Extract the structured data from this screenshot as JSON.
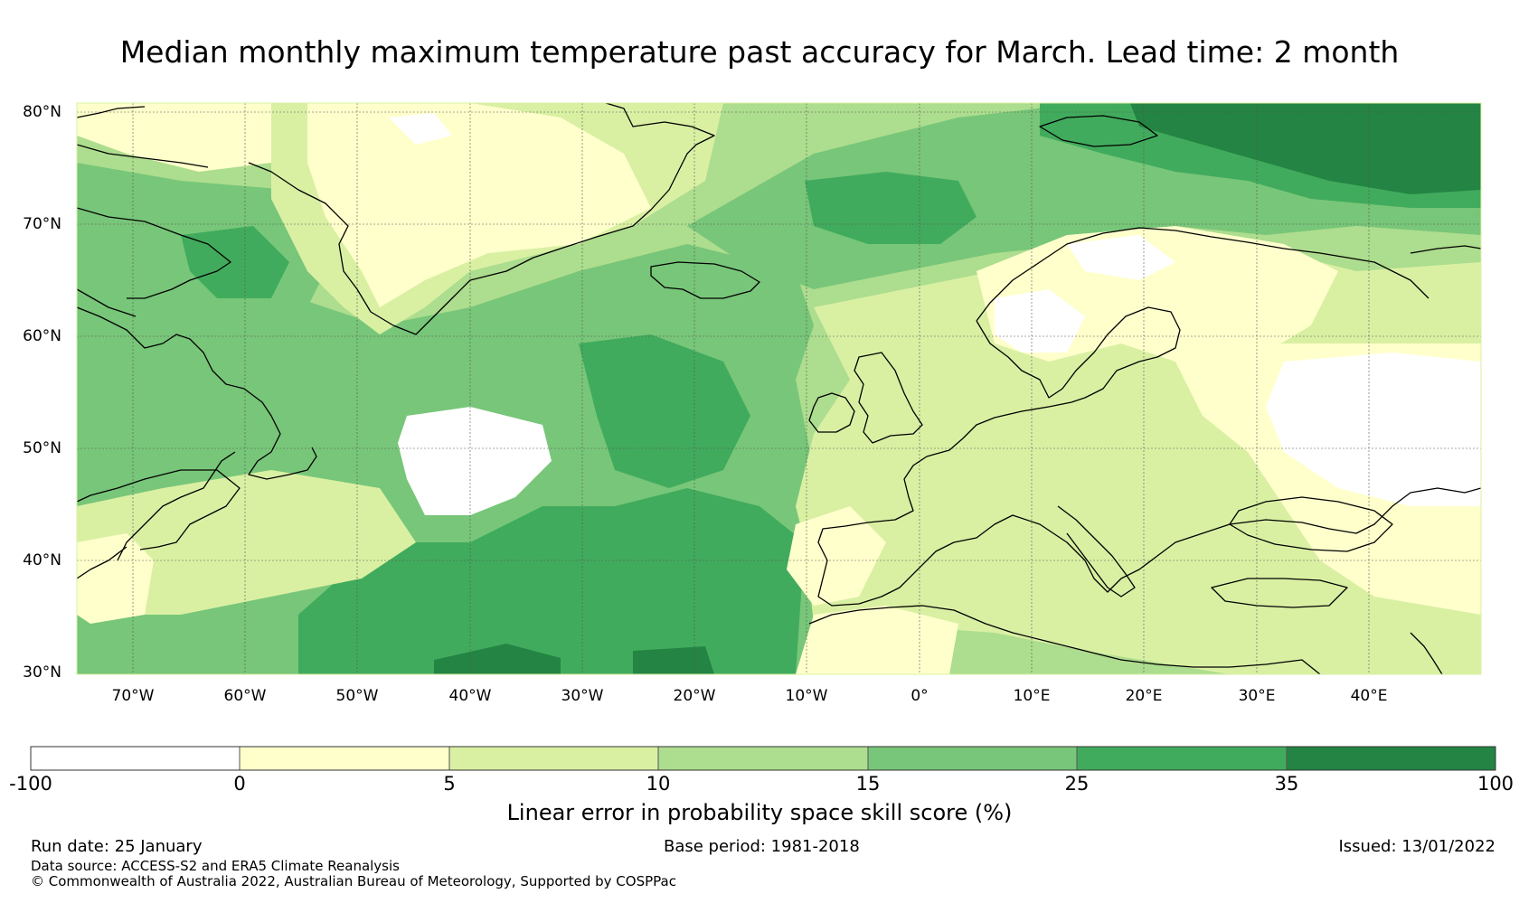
{
  "title": "Median monthly maximum temperature past accuracy for March. Lead time: 2 month",
  "axes": {
    "lat_labels": [
      "80°N",
      "70°N",
      "60°N",
      "50°N",
      "40°N",
      "30°N"
    ],
    "lon_labels": [
      "70°W",
      "60°W",
      "50°W",
      "40°W",
      "30°W",
      "20°W",
      "10°W",
      "0°",
      "10°E",
      "20°E",
      "30°E",
      "40°E"
    ],
    "lat_range": [
      30,
      81
    ],
    "lon_range": [
      -75,
      50
    ]
  },
  "colorbar": {
    "title": "Linear error in probability space skill score (%)",
    "ticks": [
      "-100",
      "0",
      "5",
      "10",
      "15",
      "25",
      "35",
      "100"
    ],
    "colors": [
      "#ffffff",
      "#ffffcc",
      "#d9f0a3",
      "#addd8e",
      "#78c679",
      "#41ab5d",
      "#238443"
    ]
  },
  "footer": {
    "run_date": "Run date: 25 January",
    "base_period": "Base period: 1981-2018",
    "issued": "Issued: 13/01/2022",
    "data_source": "Data source: ACCESS-S2 and ERA5 Climate Reanalysis",
    "copyright": "© Commonwealth of Australia 2022, Australian Bureau of Meteorology, Supported by COSPPac"
  }
}
